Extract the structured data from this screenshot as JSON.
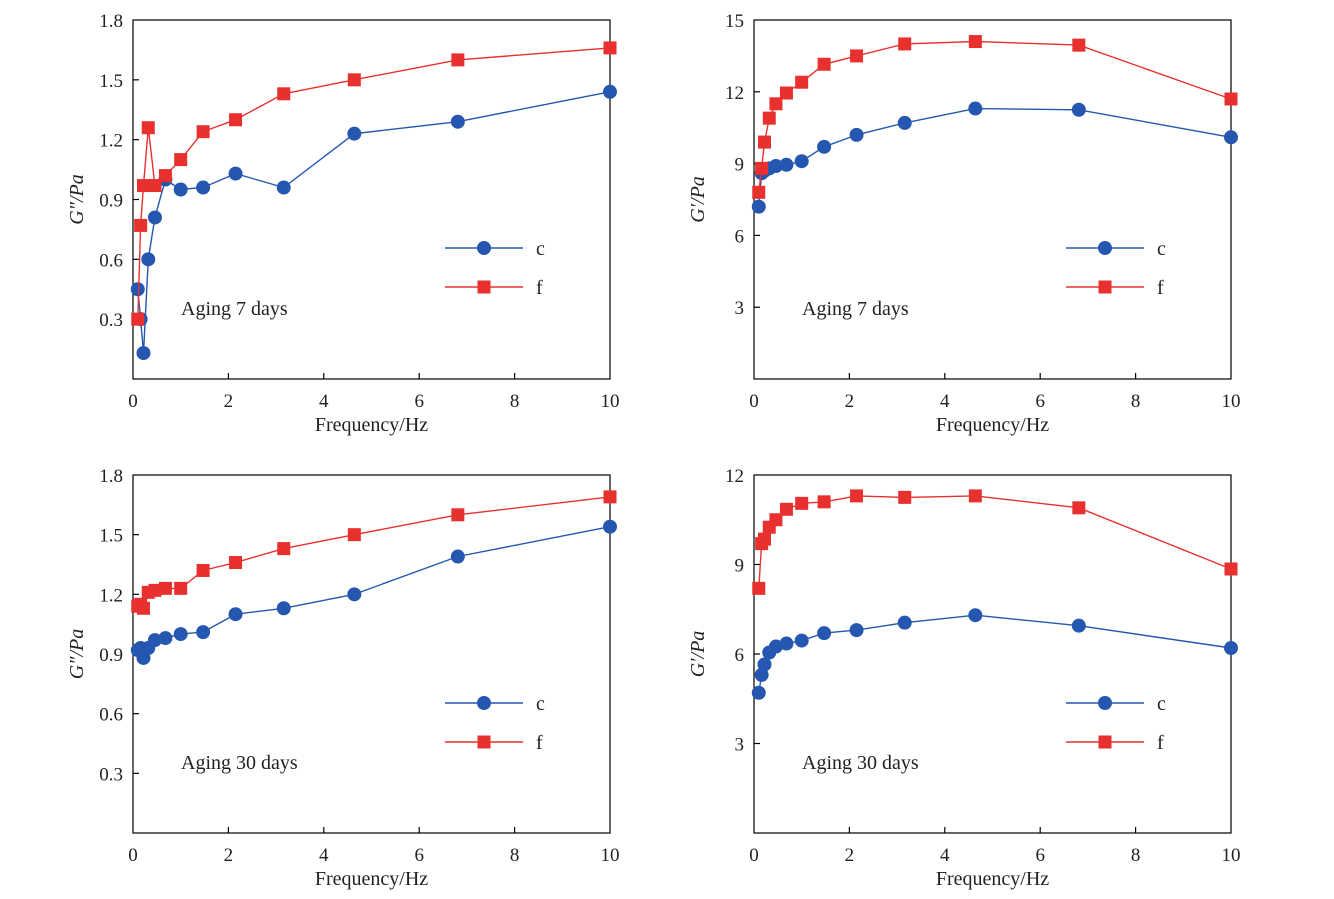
{
  "chart_data": [
    {
      "type": "line",
      "xlabel": "Frequency/Hz",
      "ylabel": "G″/Pa",
      "xlim": [
        0,
        10
      ],
      "ylim": [
        0,
        1.8
      ],
      "xticks": [
        "0",
        "2",
        "4",
        "6",
        "8",
        "10"
      ],
      "yticks": [
        "0.3",
        "0.6",
        "0.9",
        "1.2",
        "1.5",
        "1.8"
      ],
      "annotation": "Aging 7 days",
      "legend_position": "center-right",
      "series": [
        {
          "name": "c",
          "color": "#2557b0",
          "marker": "circle",
          "x": [
            0.1,
            0.16,
            0.22,
            0.32,
            0.46,
            0.68,
            1.0,
            1.47,
            2.15,
            3.16,
            4.64,
            6.81,
            10
          ],
          "y": [
            0.45,
            0.3,
            0.13,
            0.6,
            0.81,
            1.0,
            0.95,
            0.96,
            1.03,
            0.96,
            1.23,
            1.29,
            1.44
          ]
        },
        {
          "name": "f",
          "color": "#e8312f",
          "marker": "square",
          "x": [
            0.1,
            0.16,
            0.22,
            0.32,
            0.46,
            0.68,
            1.0,
            1.47,
            2.15,
            3.16,
            4.64,
            6.81,
            10
          ],
          "y": [
            0.3,
            0.77,
            0.97,
            1.26,
            0.97,
            1.02,
            1.1,
            1.24,
            1.3,
            1.43,
            1.5,
            1.6,
            1.66
          ]
        }
      ]
    },
    {
      "type": "line",
      "xlabel": "Frequency/Hz",
      "ylabel": "G′/Pa",
      "xlim": [
        0,
        10
      ],
      "ylim": [
        0,
        15
      ],
      "xticks": [
        "0",
        "2",
        "4",
        "6",
        "8",
        "10"
      ],
      "yticks": [
        "3",
        "6",
        "9",
        "12",
        "15"
      ],
      "annotation": "Aging 7 days",
      "legend_position": "center-right",
      "series": [
        {
          "name": "c",
          "color": "#2557b0",
          "marker": "circle",
          "x": [
            0.1,
            0.16,
            0.22,
            0.32,
            0.46,
            0.68,
            1.0,
            1.47,
            2.15,
            3.16,
            4.64,
            6.81,
            10
          ],
          "y": [
            7.2,
            8.6,
            8.7,
            8.8,
            8.9,
            8.95,
            9.1,
            9.7,
            10.2,
            10.7,
            11.3,
            11.25,
            10.1
          ]
        },
        {
          "name": "f",
          "color": "#e8312f",
          "marker": "square",
          "x": [
            0.1,
            0.16,
            0.22,
            0.32,
            0.46,
            0.68,
            1.0,
            1.47,
            2.15,
            3.16,
            4.64,
            6.81,
            10
          ],
          "y": [
            7.8,
            8.8,
            9.9,
            10.9,
            11.5,
            11.95,
            12.4,
            13.15,
            13.5,
            14.0,
            14.1,
            13.95,
            11.7
          ]
        }
      ]
    },
    {
      "type": "line",
      "xlabel": "Frequency/Hz",
      "ylabel": "G″/Pa",
      "xlim": [
        0,
        10
      ],
      "ylim": [
        0,
        1.8
      ],
      "xticks": [
        "0",
        "2",
        "4",
        "6",
        "8",
        "10"
      ],
      "yticks": [
        "0.3",
        "0.6",
        "0.9",
        "1.2",
        "1.5",
        "1.8"
      ],
      "annotation": "Aging 30 days",
      "legend_position": "center-right",
      "series": [
        {
          "name": "c",
          "color": "#2557b0",
          "marker": "circle",
          "x": [
            0.1,
            0.16,
            0.22,
            0.32,
            0.46,
            0.68,
            1.0,
            1.47,
            2.15,
            3.16,
            4.64,
            6.81,
            10
          ],
          "y": [
            0.92,
            0.93,
            0.88,
            0.93,
            0.97,
            0.98,
            1.0,
            1.01,
            1.1,
            1.13,
            1.2,
            1.39,
            1.54
          ]
        },
        {
          "name": "f",
          "color": "#e8312f",
          "marker": "square",
          "x": [
            0.1,
            0.16,
            0.22,
            0.32,
            0.46,
            0.68,
            1.0,
            1.47,
            2.15,
            3.16,
            4.64,
            6.81,
            10
          ],
          "y": [
            1.14,
            1.15,
            1.13,
            1.21,
            1.22,
            1.23,
            1.23,
            1.32,
            1.36,
            1.43,
            1.5,
            1.6,
            1.69
          ]
        }
      ]
    },
    {
      "type": "line",
      "xlabel": "Frequency/Hz",
      "ylabel": "G′/Pa",
      "xlim": [
        0,
        10
      ],
      "ylim": [
        0,
        12
      ],
      "xticks": [
        "0",
        "2",
        "4",
        "6",
        "8",
        "10"
      ],
      "yticks": [
        "3",
        "6",
        "9",
        "12"
      ],
      "annotation": "Aging 30 days",
      "legend_position": "center-right",
      "series": [
        {
          "name": "c",
          "color": "#2557b0",
          "marker": "circle",
          "x": [
            0.1,
            0.16,
            0.22,
            0.32,
            0.46,
            0.68,
            1.0,
            1.47,
            2.15,
            3.16,
            4.64,
            6.81,
            10
          ],
          "y": [
            4.7,
            5.3,
            5.65,
            6.05,
            6.25,
            6.35,
            6.45,
            6.7,
            6.8,
            7.05,
            7.3,
            6.95,
            6.2
          ]
        },
        {
          "name": "f",
          "color": "#e8312f",
          "marker": "square",
          "x": [
            0.1,
            0.16,
            0.22,
            0.32,
            0.46,
            0.68,
            1.0,
            1.47,
            2.15,
            3.16,
            4.64,
            6.81,
            10
          ],
          "y": [
            8.2,
            9.7,
            9.85,
            10.25,
            10.5,
            10.85,
            11.05,
            11.1,
            11.3,
            11.25,
            11.3,
            10.9,
            8.85
          ]
        }
      ]
    }
  ]
}
